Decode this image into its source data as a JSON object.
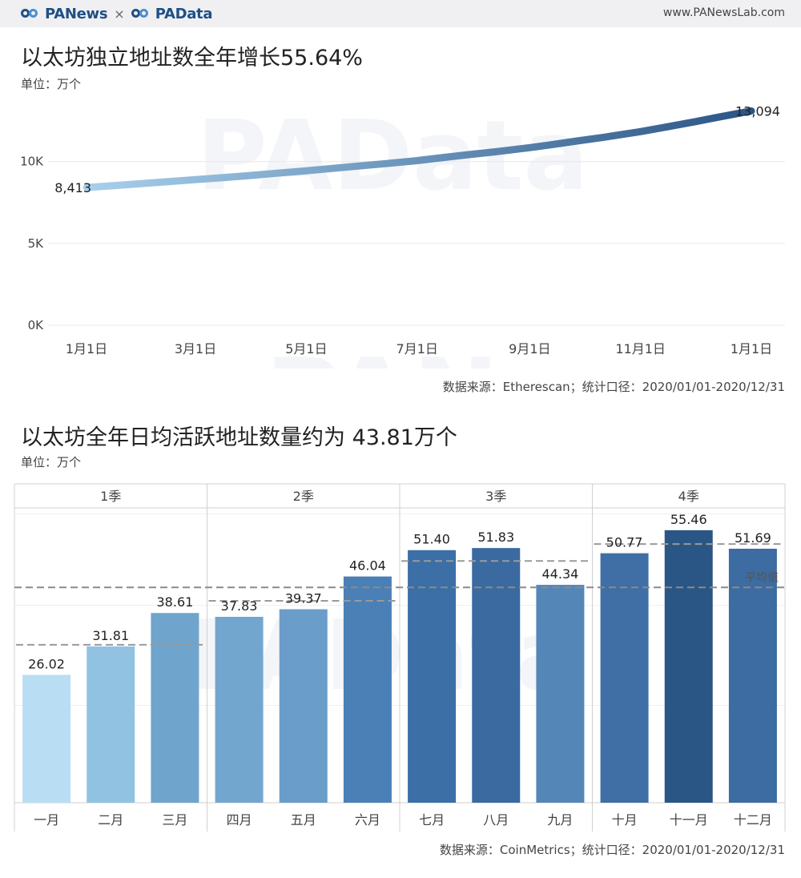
{
  "header": {
    "brand1": "PANews",
    "times": "×",
    "brand2": "PAData",
    "site": "www.PANewsLab.com"
  },
  "watermark": {
    "chart1": "PAData",
    "mid": "PANews",
    "chart2": "PAData"
  },
  "charts": {
    "line": {
      "title": "以太坊独立地址数全年增长55.64%",
      "unit": "单位：万个",
      "source": "数据来源：Etherescan；统计口径：2020/01/01-2020/12/31"
    },
    "bar": {
      "title": "以太坊全年日均活跃地址数量约为 43.81万个",
      "unit": "单位：万个",
      "source": "数据来源：CoinMetrics；统计口径：2020/01/01-2020/12/31"
    }
  },
  "chart_data": [
    {
      "type": "line",
      "x_ticks": [
        "1月1日",
        "3月1日",
        "5月1日",
        "7月1日",
        "9月1日",
        "11月1日",
        "1月1日"
      ],
      "x_tick_days": [
        0,
        60,
        121,
        182,
        244,
        305,
        366
      ],
      "y_ticks": [
        "0K",
        "5K",
        "10K"
      ],
      "y_tick_values": [
        0,
        5000,
        10000
      ],
      "ylim": [
        0,
        14000
      ],
      "xlim": [
        0,
        366
      ],
      "grid": true,
      "series": [
        {
          "x": [
            0,
            15,
            30,
            45,
            60,
            75,
            90,
            105,
            121,
            135,
            150,
            165,
            182,
            195,
            210,
            225,
            244,
            255,
            270,
            285,
            305,
            320,
            335,
            350,
            366
          ],
          "y": [
            8413,
            8530,
            8650,
            8770,
            8900,
            9020,
            9150,
            9290,
            9440,
            9580,
            9730,
            9880,
            10060,
            10230,
            10420,
            10600,
            10850,
            11020,
            11260,
            11490,
            11830,
            12130,
            12440,
            12760,
            13094
          ]
        }
      ],
      "labels": [
        {
          "x": 0,
          "y": 8413,
          "text": "8,413"
        },
        {
          "x": 366,
          "y": 13094,
          "text": "13,094"
        }
      ],
      "colors": {
        "start": "#a8d0ec",
        "end": "#2a5586"
      }
    },
    {
      "type": "bar",
      "quarters": [
        "1季",
        "2季",
        "3季",
        "4季"
      ],
      "categories": [
        "一月",
        "二月",
        "三月",
        "四月",
        "五月",
        "六月",
        "七月",
        "八月",
        "九月",
        "十月",
        "十一月",
        "十二月"
      ],
      "values": [
        26.02,
        31.81,
        38.61,
        37.83,
        39.37,
        46.04,
        51.4,
        51.83,
        44.34,
        50.77,
        55.46,
        51.69
      ],
      "value_labels": [
        "26.02",
        "31.81",
        "38.61",
        "37.83",
        "39.37",
        "46.04",
        "51.40",
        "51.83",
        "44.34",
        "50.77",
        "55.46",
        "51.69"
      ],
      "quarter_averages": [
        32.15,
        41.08,
        49.19,
        52.64
      ],
      "overall_average": 43.81,
      "average_label": "平均值",
      "ylim": [
        0,
        60
      ],
      "colors": [
        "#b9def3",
        "#92c2e2",
        "#6fa5cd",
        "#73a6cf",
        "#6a9dc9",
        "#4a80b5",
        "#3b6fa5",
        "#3a6aa0",
        "#5586b8",
        "#3f6fa4",
        "#2a5685",
        "#3c6ca1"
      ]
    }
  ]
}
